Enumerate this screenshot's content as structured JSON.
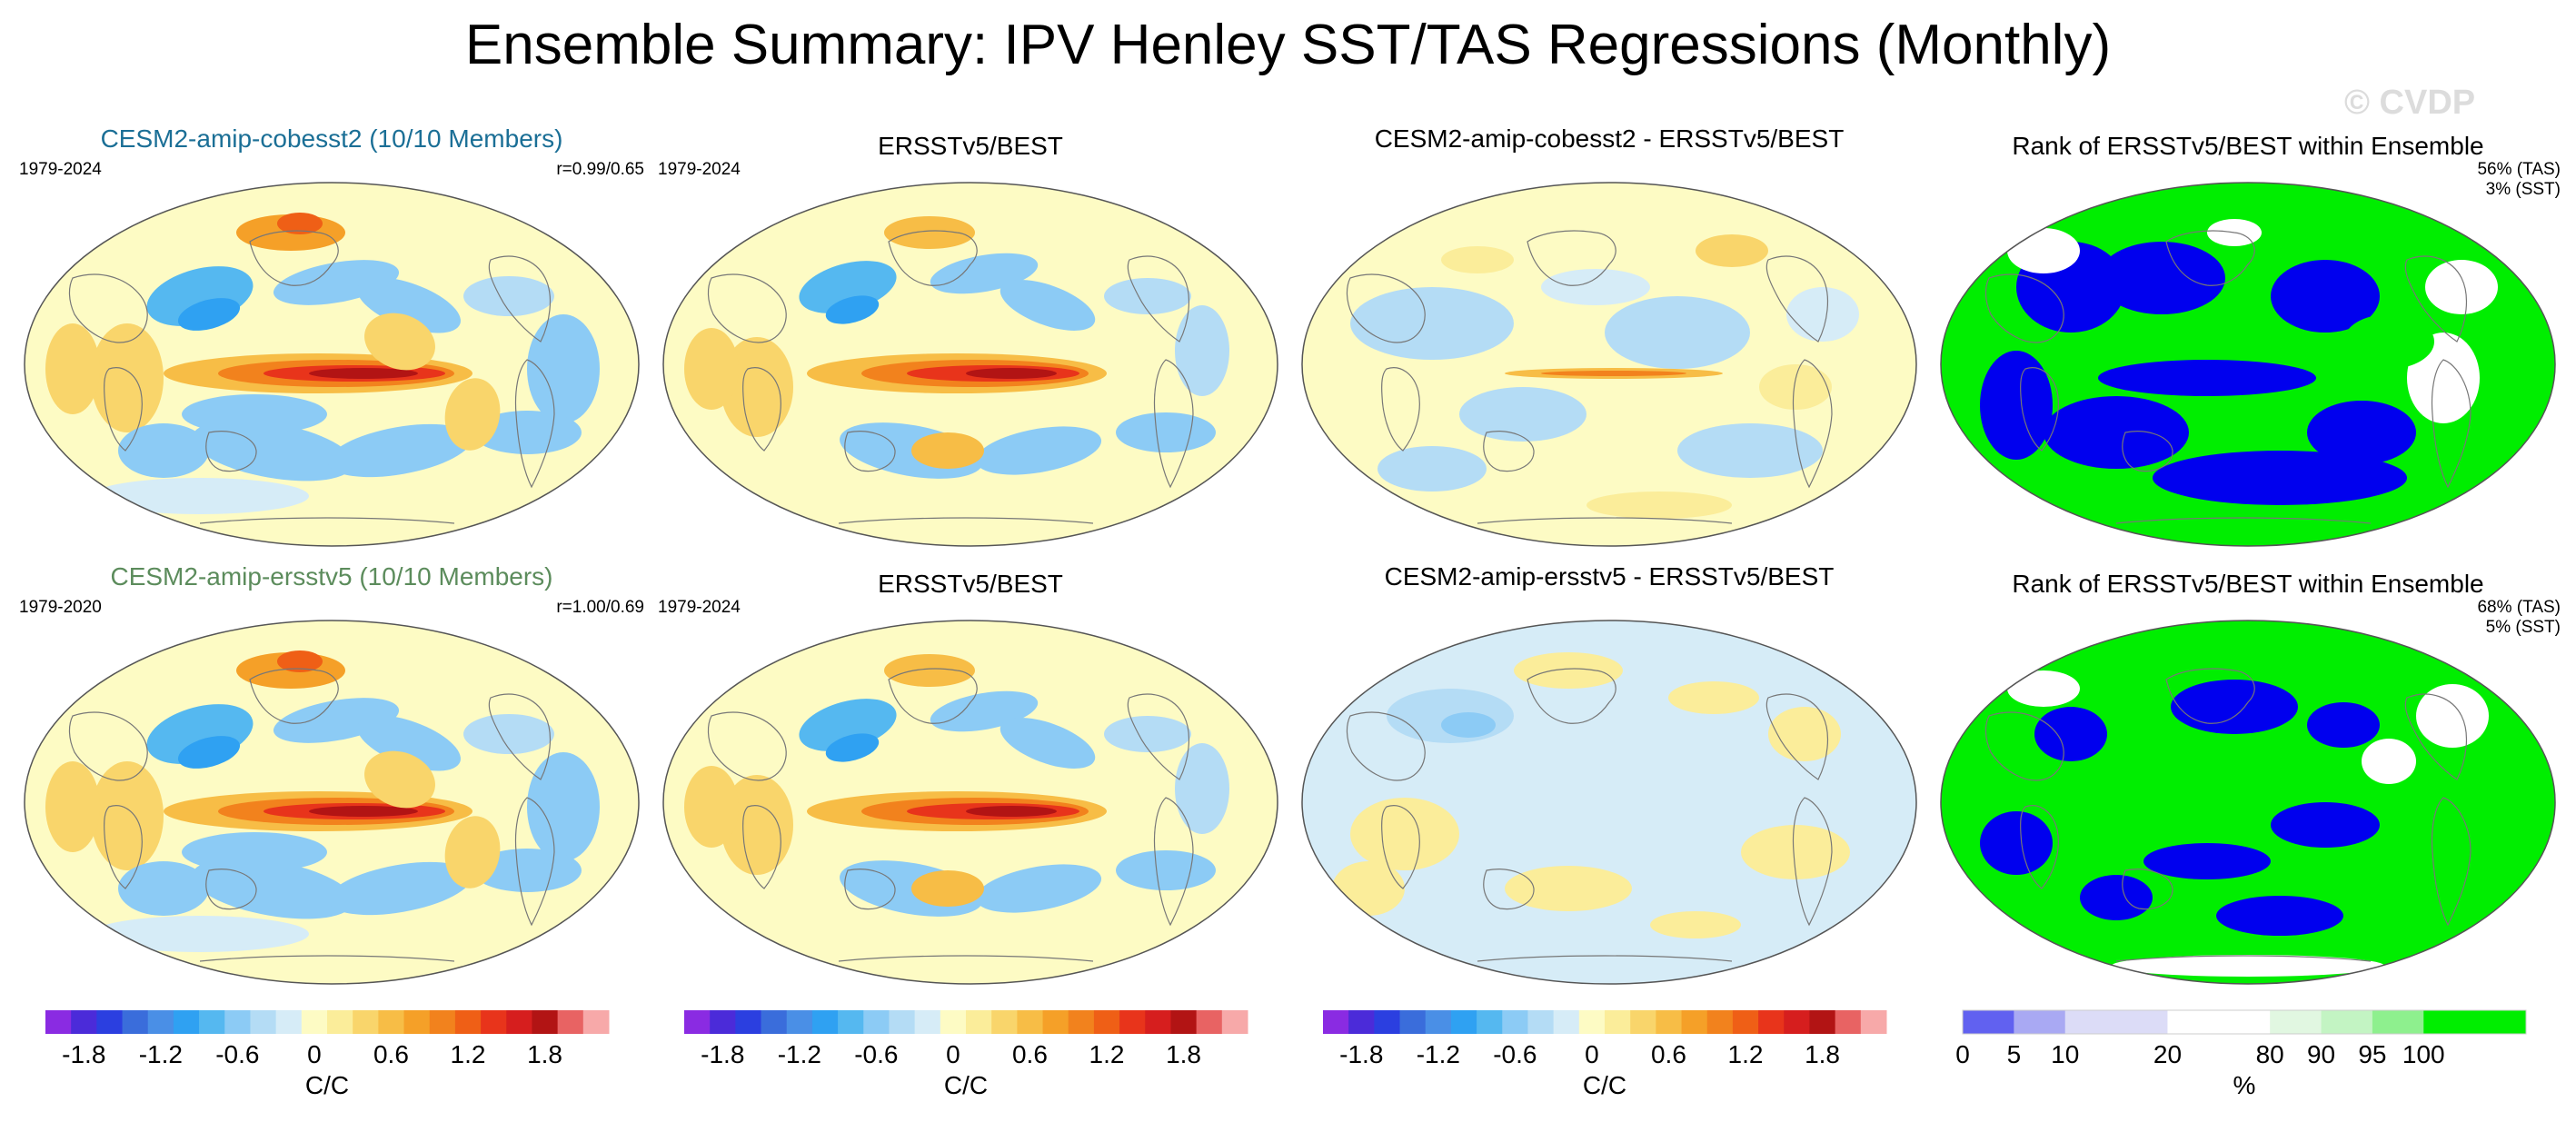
{
  "figure": {
    "title": "Ensemble Summary: IPV Henley SST/TAS Regressions (Monthly)",
    "watermark": "© CVDP"
  },
  "colors": {
    "ocean_base": "#fdfbc4",
    "div_scale": [
      "#8a2be2",
      "#4b2bd9",
      "#2b3fe0",
      "#3a6ddb",
      "#4a8fe6",
      "#2fa1f2",
      "#55b8f0",
      "#8ccbf5",
      "#b4dcf5",
      "#d6ecf7",
      "#fdfbc4",
      "#fbed9a",
      "#f9d56b",
      "#f7bd46",
      "#f5a028",
      "#f2821d",
      "#ef5f16",
      "#e8341b",
      "#d61e1e",
      "#b21414",
      "#e86363",
      "#f7a9a9"
    ],
    "rank_scale": [
      "#0000ee",
      "#6161f0",
      "#a9a9f3",
      "#dcdcf7",
      "#ffffff",
      "#e1f7e1",
      "#c3f4c3",
      "#8ef08e",
      "#00ee00"
    ]
  },
  "panels": [
    {
      "title": "CESM2-amip-cobesst2 (10/10 Members)",
      "period": "1979-2024",
      "note1": "r=0.99/0.65",
      "note2": "",
      "kind": "model"
    },
    {
      "title": "ERSSTv5/BEST",
      "period": "1979-2024",
      "note1": "",
      "note2": "",
      "kind": "obs"
    },
    {
      "title": "CESM2-amip-cobesst2 - ERSSTv5/BEST",
      "period": "",
      "note1": "",
      "note2": "",
      "kind": "diff1"
    },
    {
      "title": "Rank of ERSSTv5/BEST within Ensemble",
      "period": "",
      "note1": "56% (TAS)",
      "note2": "3% (SST)",
      "kind": "rank1"
    },
    {
      "title": "CESM2-amip-ersstv5 (10/10 Members)",
      "period": "1979-2020",
      "note1": "r=1.00/0.69",
      "note2": "",
      "kind": "model"
    },
    {
      "title": "ERSSTv5/BEST",
      "period": "1979-2024",
      "note1": "",
      "note2": "",
      "kind": "obs"
    },
    {
      "title": "CESM2-amip-ersstv5 - ERSSTv5/BEST",
      "period": "",
      "note1": "",
      "note2": "",
      "kind": "diff2"
    },
    {
      "title": "Rank of ERSSTv5/BEST within Ensemble",
      "period": "",
      "note1": "68% (TAS)",
      "note2": "5% (SST)",
      "kind": "rank2"
    }
  ],
  "colorbars": [
    {
      "type": "div",
      "labels": [
        "-1.8",
        "-1.2",
        "-0.6",
        "0",
        "0.6",
        "1.2",
        "1.8"
      ],
      "unit": "C/C"
    },
    {
      "type": "div",
      "labels": [
        "-1.8",
        "-1.2",
        "-0.6",
        "0",
        "0.6",
        "1.2",
        "1.8"
      ],
      "unit": "C/C"
    },
    {
      "type": "div",
      "labels": [
        "-1.8",
        "-1.2",
        "-0.6",
        "0",
        "0.6",
        "1.2",
        "1.8"
      ],
      "unit": "C/C"
    },
    {
      "type": "rank",
      "labels": [
        "0",
        "5",
        "10",
        "20",
        "80",
        "90",
        "95",
        "100"
      ],
      "unit": "%"
    }
  ]
}
